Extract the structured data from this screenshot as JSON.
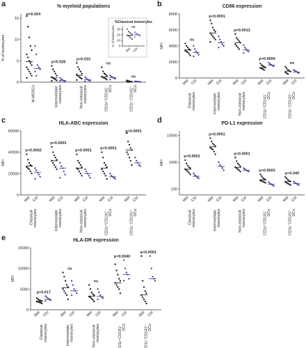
{
  "chart_data": [
    {
      "type": "strip",
      "panel": "a",
      "title": "% myeloid populations",
      "ylabel": "% of leukocytes",
      "ylim": [
        0,
        16
      ],
      "yticks": [
        0,
        5,
        10,
        15
      ],
      "categories": [
        "M-MDSCs",
        "Intermediate monocytes",
        "Non-classical monocytes",
        "CD1c⁺CD141⁻ DCs",
        "CD1c⁻CD141⁺ DCs"
      ],
      "pvalues": [
        "p=0.024",
        "p=0.028",
        "p=0.015",
        "ns",
        "ns"
      ],
      "series": [
        {
          "color": "#222222",
          "values": [
            [
              15.5,
              13,
              10.5,
              8.5,
              7.5,
              6.5,
              5.8,
              5,
              4.5,
              4,
              3.5,
              3,
              2.5,
              2,
              1.5,
              1
            ],
            [
              3.8,
              3,
              2.5,
              2,
              1.5,
              1.2,
              1,
              0.8,
              0.6,
              0.4,
              0.3
            ],
            [
              4.5,
              3.5,
              3,
              2.5,
              2,
              1.8,
              1.5,
              1.2,
              1,
              0.8,
              0.5
            ],
            [
              3.5,
              2.5,
              2,
              1.8,
              1.5,
              1.3,
              1.1,
              1,
              0.8,
              0.6
            ],
            [
              0.4,
              0.3,
              0.2,
              0.15,
              0.1,
              0.1,
              0.05,
              0.05
            ]
          ],
          "medians": [
            4.8,
            1,
            1.6,
            1.2,
            0.1
          ]
        },
        {
          "color": "#4a4aa6",
          "values": [
            [
              8.5,
              6.5,
              4,
              3.5,
              3,
              2.5,
              1.5
            ],
            [
              1,
              0.7,
              0.5,
              0.3,
              0.2,
              0.1
            ],
            [
              1.2,
              0.9,
              0.6,
              0.4,
              0.3,
              0.2
            ],
            [
              1.6,
              1.3,
              1.1,
              1,
              0.8,
              0.6
            ],
            [
              0.2,
              0.15,
              0.1,
              0.1,
              0.05
            ]
          ],
          "medians": [
            3.2,
            0.4,
            0.6,
            1.1,
            0.1
          ]
        }
      ]
    },
    {
      "type": "strip",
      "title": "%Classical monocytes",
      "ylabel": "% of leukocytes",
      "ylim": [
        0,
        35
      ],
      "yticks": [
        0,
        10,
        20,
        30
      ],
      "categories": [
        null
      ],
      "pvalues": [
        "ns"
      ],
      "series": [
        {
          "name": "Mel",
          "color": "#222222",
          "values": [
            [
              30,
              26,
              24,
              22,
              20,
              19,
              18,
              16,
              14,
              12
            ]
          ],
          "medians": [
            19
          ]
        },
        {
          "name": "Ctrl",
          "color": "#4a4aa6",
          "values": [
            [
              25,
              23,
              21,
              20,
              18,
              16
            ]
          ],
          "medians": [
            20
          ]
        }
      ]
    },
    {
      "type": "strip",
      "panel": "b",
      "title": "CD86 expression",
      "ylabel": "MFI",
      "ylim": [
        0,
        8000
      ],
      "yticks": [
        0,
        2000,
        4000,
        6000,
        8000
      ],
      "categories": [
        "Classical monocytes",
        "Intermediate monocytes",
        "Non-classical monocytes",
        "CD1c⁺CD141⁻ DCs",
        "CD1c⁻CD141⁺ DCs"
      ],
      "pvalues": [
        "ns",
        "p<0.0001",
        "p=0.0013",
        "p=0.0004",
        "ns"
      ],
      "series": [
        {
          "name": "Mel",
          "color": "#222222",
          "values": [
            [
              4300,
              4000,
              3800,
              3600,
              3500,
              3400,
              3300,
              3200,
              3000,
              2800
            ],
            [
              7200,
              6800,
              6300,
              6000,
              5800,
              5600,
              5400,
              5200,
              5000,
              4800,
              4500
            ],
            [
              5500,
              5000,
              4800,
              4600,
              4400,
              4200,
              4000,
              3800,
              3600
            ],
            [
              1800,
              1600,
              1500,
              1400,
              1300,
              1250,
              1200,
              1100,
              1000
            ],
            [
              1400,
              1200,
              1000,
              900,
              800,
              700,
              600,
              500
            ]
          ],
          "medians": [
            3500,
            5600,
            4400,
            1300,
            850
          ]
        },
        {
          "name": "Ctrl",
          "color": "#4a4aa6",
          "values": [
            [
              4000,
              3600,
              3300,
              3100,
              2900,
              2700
            ],
            [
              5200,
              4800,
              4500,
              4200,
              4000,
              3800
            ],
            [
              4100,
              3800,
              3600,
              3400,
              3300,
              3100
            ],
            [
              1900,
              1750,
              1650,
              1550,
              1450
            ],
            [
              1000,
              900,
              800,
              700,
              600
            ]
          ],
          "medians": [
            3200,
            4400,
            3500,
            1600,
            750
          ]
        }
      ]
    },
    {
      "type": "strip",
      "panel": "c",
      "title": "HLA-ABC expression",
      "ylabel": "MFI",
      "ylim": [
        0,
        60000
      ],
      "yticks": [
        0,
        20000,
        40000,
        60000
      ],
      "categories": [
        "Classical monocytes",
        "Intermediate monocytes",
        "Non-classical monocytes",
        "CD1c⁺CD141⁻ DCs",
        "CD1c⁻CD141⁺ DCs"
      ],
      "pvalues": [
        "p=0.0002",
        "p<0.0001",
        "p<0.0001",
        "p<0.0001",
        "p<0.0001"
      ],
      "series": [
        {
          "name": "Mel",
          "color": "#222222",
          "values": [
            [
              38000,
              33000,
              30000,
              28000,
              27000,
              26000,
              25000,
              24000,
              22000,
              20000
            ],
            [
              45000,
              40000,
              37000,
              35000,
              33000,
              32000,
              30000,
              28000,
              26000,
              24000
            ],
            [
              38000,
              32000,
              30000,
              28000,
              26000,
              25000,
              24000,
              22000,
              20000,
              18000
            ],
            [
              40000,
              35000,
              30000,
              28000,
              26000,
              24000,
              22000,
              20000,
              18000,
              15000
            ],
            [
              58000,
              50000,
              47000,
              44000,
              42000,
              40000,
              38000,
              35000,
              32000,
              28000
            ]
          ],
          "medians": [
            27000,
            32000,
            25000,
            25000,
            42000
          ]
        },
        {
          "name": "Ctrl",
          "color": "#4a4aa6",
          "values": [
            [
              25000,
              23000,
              21000,
              19000,
              17000,
              15000
            ],
            [
              30000,
              27000,
              25000,
              22000,
              19000,
              16000
            ],
            [
              24000,
              22000,
              20000,
              18000,
              16000
            ],
            [
              20000,
              18000,
              17000,
              16000,
              15000
            ],
            [
              35000,
              32000,
              30000,
              28000,
              27000
            ]
          ],
          "medians": [
            21000,
            25000,
            20000,
            17000,
            30000
          ]
        }
      ]
    },
    {
      "type": "strip",
      "panel": "d",
      "title": "PD-L1 expression",
      "ylabel": "MFI",
      "log": true,
      "ylim": [
        60,
        15000
      ],
      "yticks": [
        100,
        1000,
        10000
      ],
      "categories": [
        "Classical monocytes",
        "Intermediate monocytes",
        "Non-classical monocytes",
        "CD1c⁺CD141⁻ DCs",
        "CD1c⁻CD141⁺ DCs"
      ],
      "pvalues": [
        "p<0.0001",
        "p<0.0001",
        "p<0.0001",
        "p=0.0003",
        "p=0.040"
      ],
      "series": [
        {
          "name": "Mel",
          "color": "#222222",
          "values": [
            [
              1200,
              900,
              750,
              650,
              600,
              550,
              500,
              450,
              400,
              350
            ],
            [
              8000,
              6000,
              5000,
              4500,
              4000,
              3500,
              3200,
              3000,
              2500,
              2000
            ],
            [
              1500,
              1100,
              900,
              800,
              700,
              650,
              600,
              550,
              500,
              450
            ],
            [
              350,
              300,
              260,
              240,
              220,
              210,
              200,
              190,
              180,
              170
            ],
            [
              280,
              250,
              220,
              200,
              190,
              180,
              170,
              160,
              150,
              140
            ]
          ],
          "medians": [
            550,
            3800,
            650,
            220,
            190
          ]
        },
        {
          "name": "Ctrl",
          "color": "#4a4aa6",
          "values": [
            [
              380,
              330,
              300,
              270,
              250
            ],
            [
              1000,
              800,
              700,
              600,
              500
            ],
            [
              600,
              550,
              500,
              480,
              450
            ],
            [
              180,
              160,
              150,
              140,
              130
            ],
            [
              190,
              170,
              160,
              150,
              140
            ]
          ],
          "medians": [
            300,
            700,
            500,
            150,
            160
          ]
        }
      ]
    },
    {
      "type": "strip",
      "panel": "e",
      "title": "HLA-DR expression",
      "ylabel": "MFI",
      "ylim": [
        0,
        15000
      ],
      "yticks": [
        0,
        5000,
        10000,
        15000
      ],
      "categories": [
        "Classical monocytes",
        "Intermediate monocytes",
        "Non-classical monocytes",
        "CD1c⁺CD141⁻ DCs",
        "CD1c⁻CD141⁺ DCs"
      ],
      "pvalues": [
        "p=0.017",
        "ns",
        "ns",
        "p=0.0040",
        "p<0.0001"
      ],
      "series": [
        {
          "name": "Mel",
          "color": "#222222",
          "values": [
            [
              2800,
              2500,
              2300,
              2200,
              2100,
              2000,
              1900,
              1800,
              1700,
              1500
            ],
            [
              9000,
              8000,
              7000,
              6000,
              5500,
              5000,
              4500,
              4000,
              3500,
              2500
            ],
            [
              6000,
              5000,
              4200,
              3800,
              3500,
              3200,
              3000,
              2700,
              2400,
              2000
            ],
            [
              11000,
              9500,
              8500,
              7500,
              7000,
              6500,
              6000,
              5500,
              5000,
              4000
            ],
            [
              13000,
              7000,
              5500,
              4500,
              4000,
              3500,
              3000,
              2500,
              2000,
              1500
            ]
          ],
          "medians": [
            2000,
            5300,
            3300,
            6500,
            3600
          ]
        },
        {
          "name": "Ctrl",
          "color": "#4a4aa6",
          "values": [
            [
              3300,
              3000,
              2700,
              2500,
              2300,
              2100
            ],
            [
              7000,
              6000,
              5000,
              4500,
              4000,
              3500
            ],
            [
              5000,
              4200,
              3500,
              3100,
              2800,
              2500
            ],
            [
              12000,
              10000,
              9000,
              8500,
              7500,
              7000
            ],
            [
              13000,
              10000,
              8000,
              7500,
              7000
            ]
          ],
          "medians": [
            2500,
            4600,
            3200,
            8500,
            7500
          ]
        }
      ]
    }
  ]
}
